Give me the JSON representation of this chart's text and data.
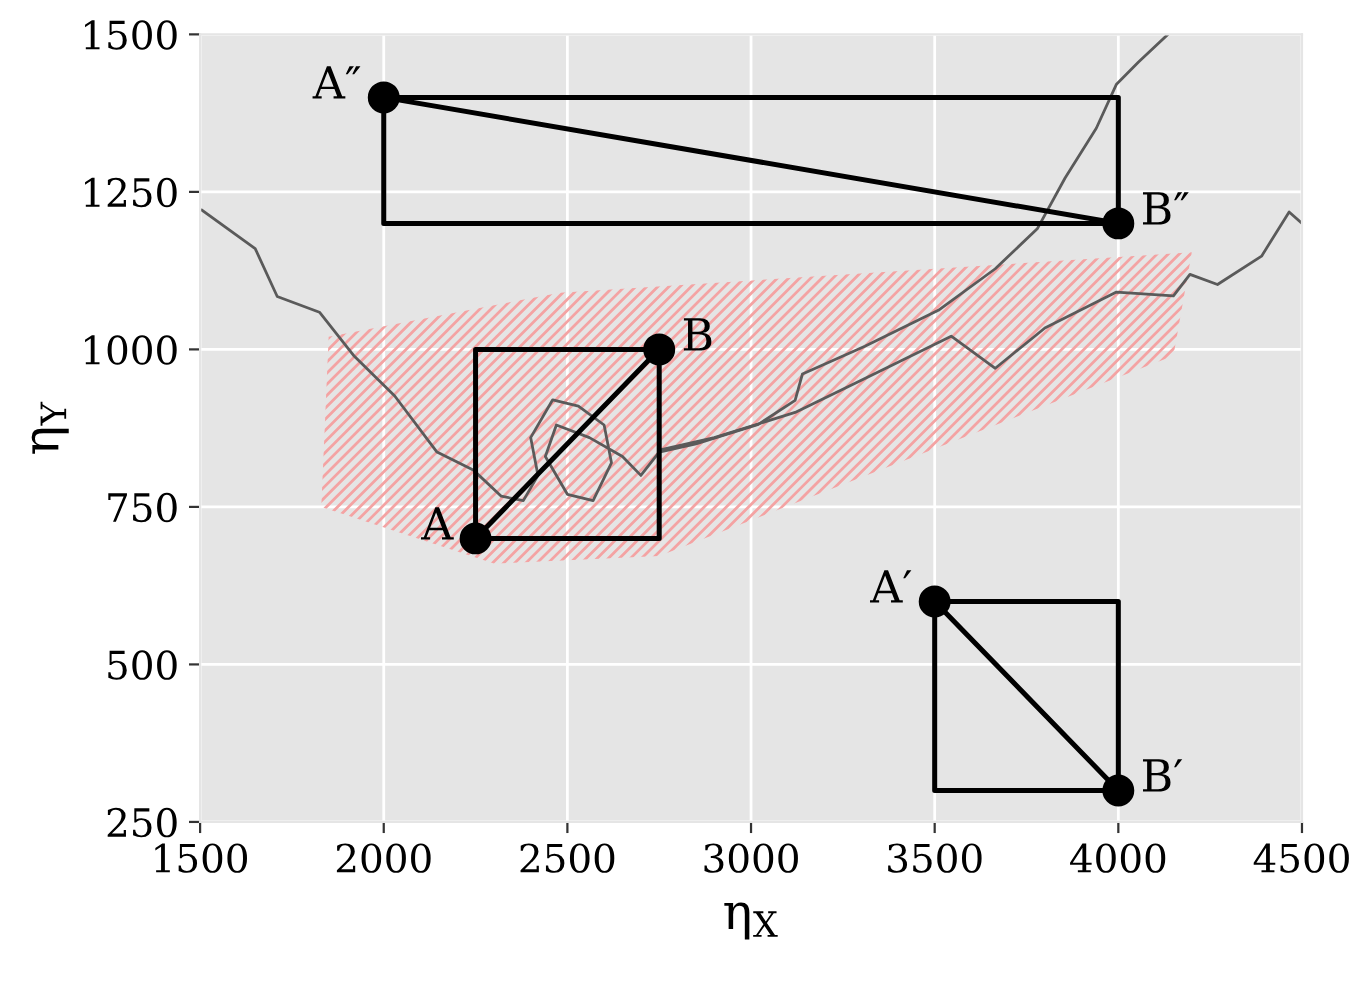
{
  "chart_data": {
    "type": "line",
    "xlabel": "η$_{X}$",
    "ylabel": "η$_{Y}$",
    "xlim": [
      1500,
      4500
    ],
    "ylim": [
      250,
      1500
    ],
    "xticks": [
      1500,
      2000,
      2500,
      3000,
      3500,
      4000,
      4500
    ],
    "yticks": [
      250,
      500,
      750,
      1000,
      1250,
      1500
    ],
    "grid": true,
    "legend": false,
    "series": [
      {
        "type": "area",
        "color": "#f4a3a3",
        "x": [
          1850,
          2480,
          4200,
          4150,
          2750,
          2300,
          1830
        ],
        "values": [
          1020,
          1090,
          1154,
          990,
          672,
          660,
          750
        ]
      },
      {
        "color": "#5a5a5a",
        "x": [
          1505,
          1650,
          1710,
          1825,
          1920,
          2030,
          2145,
          2245,
          2320,
          2380,
          2420,
          2400,
          2460,
          2530,
          2600,
          2620,
          2570,
          2500,
          2440,
          2470,
          2560,
          2650,
          2700,
          2750,
          2850,
          3020,
          3120,
          3140,
          3310,
          3510,
          3665,
          3780,
          3855,
          3940,
          3995,
          4055,
          4135
        ],
        "values": [
          1221,
          1160,
          1084,
          1059,
          989,
          926,
          837,
          808,
          767,
          760,
          800,
          860,
          920,
          910,
          880,
          820,
          760,
          770,
          830,
          880,
          860,
          830,
          800,
          837,
          850,
          881,
          919,
          961,
          1005,
          1062,
          1128,
          1192,
          1272,
          1351,
          1421,
          1456,
          1500
        ]
      },
      {
        "color": "#5a5a5a",
        "x": [
          2750,
          2900,
          3120,
          3310,
          3545,
          3665,
          3800,
          3995,
          4150,
          4195,
          4270,
          4390,
          4465,
          4500
        ],
        "values": [
          840,
          860,
          900,
          954,
          1021,
          970,
          1034,
          1091,
          1085,
          1119,
          1103,
          1148,
          1218,
          1200
        ]
      },
      {
        "color": "#000000",
        "x": [
          2250,
          2750,
          2750,
          2250,
          2250,
          2750
        ],
        "values": [
          700,
          700,
          1000,
          1000,
          700,
          1000
        ]
      },
      {
        "color": "#000000",
        "x": [
          3500,
          3500,
          4000,
          4000,
          3500,
          4000
        ],
        "values": [
          600,
          300,
          300,
          600,
          600,
          300
        ]
      },
      {
        "color": "#000000",
        "x": [
          2000,
          2000,
          4000,
          4000,
          2000,
          4000
        ],
        "values": [
          1400,
          1200,
          1200,
          1400,
          1400,
          1200
        ]
      },
      {
        "type": "scatter",
        "color": "#000000",
        "x": [
          2250,
          2750,
          3500,
          4000,
          2000,
          4000
        ],
        "values": [
          700,
          1000,
          600,
          300,
          1400,
          1200
        ]
      }
    ],
    "annotations": [
      {
        "text": "A",
        "x": 2250,
        "y": 700
      },
      {
        "text": "B",
        "x": 2750,
        "y": 1000
      },
      {
        "text": "A′",
        "x": 3500,
        "y": 600
      },
      {
        "text": "B′",
        "x": 4000,
        "y": 300
      },
      {
        "text": "A″",
        "x": 2000,
        "y": 1400
      },
      {
        "text": "B″",
        "x": 4000,
        "y": 1200
      }
    ]
  }
}
